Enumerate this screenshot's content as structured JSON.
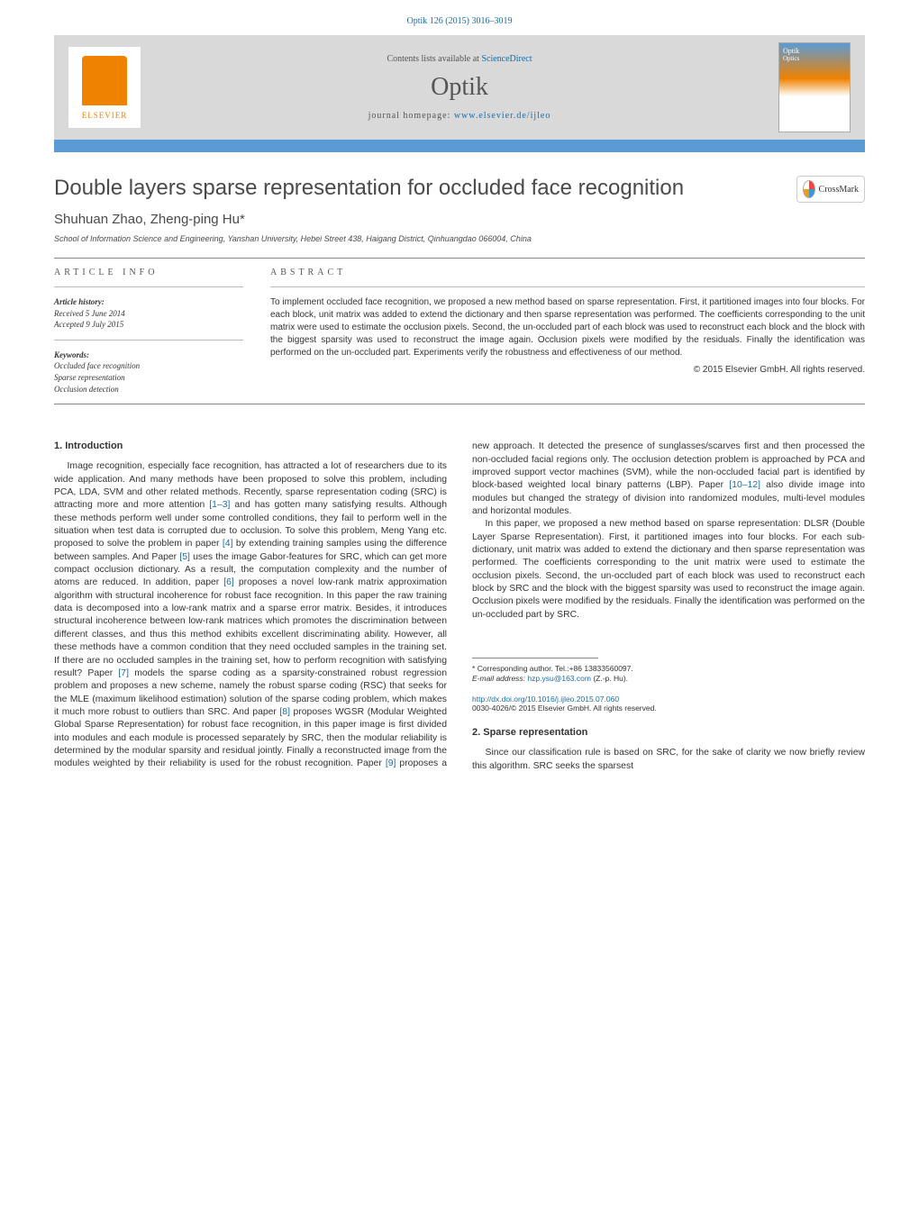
{
  "header": {
    "citation": "Optik 126 (2015) 3016–3019",
    "contents_prefix": "Contents lists available at ",
    "contents_link": "ScienceDirect",
    "journal": "Optik",
    "homepage_prefix": "journal homepage: ",
    "homepage_url": "www.elsevier.de/ijleo",
    "elsevier": "ELSEVIER",
    "cover_title": "Optik",
    "cover_sub": "Optics"
  },
  "crossmark": "CrossMark",
  "title": "Double layers sparse representation for occluded face recognition",
  "authors": "Shuhuan Zhao, Zheng-ping Hu*",
  "affiliation": "School of Information Science and Engineering, Yanshan University, Hebei Street 438, Haigang District, Qinhuangdao 066004, China",
  "article_info": {
    "heading": "ARTICLE INFO",
    "history_label": "Article history:",
    "received": "Received 5 June 2014",
    "accepted": "Accepted 9 July 2015",
    "keywords_label": "Keywords:",
    "k1": "Occluded face recognition",
    "k2": "Sparse representation",
    "k3": "Occlusion detection"
  },
  "abstract": {
    "heading": "ABSTRACT",
    "text": "To implement occluded face recognition, we proposed a new method based on sparse representation. First, it partitioned images into four blocks. For each block, unit matrix was added to extend the dictionary and then sparse representation was performed. The coefficients corresponding to the unit matrix were used to estimate the occlusion pixels. Second, the un-occluded part of each block was used to reconstruct each block and the block with the biggest sparsity was used to reconstruct the image again. Occlusion pixels were modified by the residuals. Finally the identification was performed on the un-occluded part. Experiments verify the robustness and effectiveness of our method.",
    "copyright": "© 2015 Elsevier GmbH. All rights reserved."
  },
  "sections": {
    "s1_heading": "1. Introduction",
    "s2_heading": "2. Sparse representation"
  },
  "body": {
    "p1a": "Image recognition, especially face recognition, has attracted a lot of researchers due to its wide application. And many methods have been proposed to solve this problem, including PCA, LDA, SVM and other related methods. Recently, sparse representation coding (SRC) is attracting more and more attention ",
    "c1": "[1–3]",
    "p1b": " and has gotten many satisfying results. Although these methods perform well under some controlled conditions, they fail to perform well in the situation when test data is corrupted due to occlusion. To solve this problem, Meng Yang etc. proposed to solve the problem in paper ",
    "c2": "[4]",
    "p1c": " by extending training samples using the difference between samples. And Paper ",
    "c3": "[5]",
    "p1d": " uses the image Gabor-features for SRC, which can get more compact occlusion dictionary. As a result, the computation complexity and the number of atoms are reduced. In addition, paper ",
    "c4": "[6]",
    "p1e": " proposes a novel low-rank matrix approximation algorithm with structural incoherence for robust face recognition. In this paper the raw training data is decomposed into a low-rank matrix and a sparse error matrix. Besides, it introduces structural incoherence between low-rank matrices which promotes the discrimination between different classes, and thus this method exhibits excellent discriminating ability. However, all these methods have a common condition that they need occluded samples in the training set. If there are no occluded samples in the training set, how to perform recognition with satisfying result? Paper ",
    "c5": "[7]",
    "p1f": " models the sparse coding as a sparsity-constrained robust regression problem and proposes a new scheme, namely the robust sparse coding (RSC) that seeks for the MLE (maximum likelihood estimation) solution of the sparse coding problem, which makes it much more robust to outliers than SRC. And paper ",
    "c6": "[8]",
    "p1g": " proposes WGSR (Modular Weighted Global Sparse Representation) for robust face recognition, in this paper image is first divided into modules and each module is processed separately by SRC, then the modular reliability is determined by the modular sparsity and residual jointly. Finally a reconstructed image from the modules weighted by their reliability is used for the robust recognition. Paper ",
    "c7": "[9]",
    "p1h": " proposes a new approach. It detected the presence of sunglasses/scarves first and then processed the non-occluded facial regions only. The occlusion detection problem is approached by PCA and improved support vector machines (SVM), while the non-occluded facial part is identified by block-based weighted local binary patterns (LBP). Paper ",
    "c8": "[10–12]",
    "p1i": " also divide image into modules but changed the strategy of division into randomized modules, multi-level modules and horizontal modules.",
    "p2": "In this paper, we proposed a new method based on sparse representation: DLSR (Double Layer Sparse Representation). First, it partitioned images into four blocks. For each sub-dictionary, unit matrix was added to extend the dictionary and then sparse representation was performed. The coefficients corresponding to the unit matrix were used to estimate the occlusion pixels. Second, the un-occluded part of each block was used to reconstruct each block by SRC and the block with the biggest sparsity was used to reconstruct the image again. Occlusion pixels were modified by the residuals. Finally the identification was performed on the un-occluded part by SRC.",
    "p3": "Since our classification rule is based on SRC, for the sake of clarity we now briefly review this algorithm. SRC seeks the sparsest"
  },
  "footer": {
    "corr_symbol": "*",
    "corr_text": "Corresponding author. Tel.:+86 13833560097.",
    "email_label": "E-mail address: ",
    "email": "hzp.ysu@163.com",
    "email_who": " (Z.-p. Hu).",
    "doi": "http://dx.doi.org/10.1016/j.ijleo.2015.07.060",
    "issn": "0030-4026/© 2015 Elsevier GmbH. All rights reserved."
  },
  "colors": {
    "link": "#1a6ca8",
    "banner_bg": "#d9d9d9",
    "accent": "#5b9bd5",
    "elsevier": "#ef8200"
  }
}
